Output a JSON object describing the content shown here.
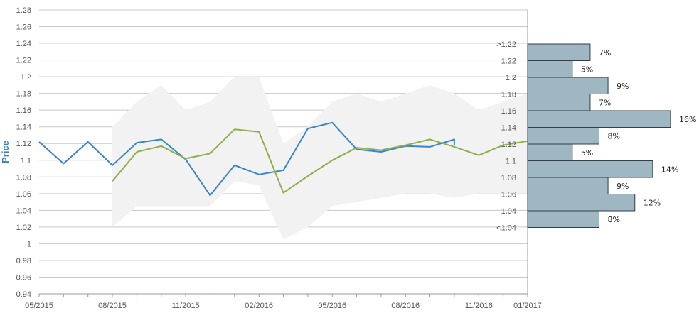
{
  "chart_data": {
    "type": "line",
    "ylabel": "Price",
    "ylim": [
      0.94,
      1.28
    ],
    "y_ticks": [
      "1.28",
      "1.26",
      "1.24",
      "1.22",
      "1.2",
      "1.18",
      "1.16",
      "1.14",
      "1.12",
      "1.1",
      "1.08",
      "1.06",
      "1.04",
      "1.02",
      "1",
      "0.98",
      "0.96",
      "0.94"
    ],
    "x_ticks": [
      "05/2015",
      "08/2015",
      "11/2015",
      "02/2016",
      "05/2016",
      "08/2016",
      "11/2016",
      "01/2017"
    ],
    "grid": true,
    "series": [
      {
        "color": "#3a84cc",
        "x": [
          "05/2015",
          "06/2015",
          "07/2015",
          "08/2015",
          "09/2015",
          "10/2015",
          "11/2015",
          "12/2015",
          "01/2016",
          "02/2016",
          "03/2016",
          "04/2016",
          "05/2016",
          "06/2016",
          "07/2016",
          "08/2016",
          "09/2016",
          "10/2016",
          "10/2016"
        ],
        "values": [
          1.122,
          1.096,
          1.122,
          1.094,
          1.121,
          1.125,
          1.101,
          1.058,
          1.094,
          1.083,
          1.088,
          1.138,
          1.145,
          1.113,
          1.11,
          1.117,
          1.116,
          1.125,
          1.118
        ]
      },
      {
        "color": "#8db04a",
        "x": [
          "08/2015",
          "09/2015",
          "10/2015",
          "11/2015",
          "12/2015",
          "01/2016",
          "02/2016",
          "03/2016",
          "04/2016",
          "05/2016",
          "06/2016",
          "07/2016",
          "08/2016",
          "09/2016",
          "10/2016",
          "11/2016",
          "12/2016",
          "01/2017"
        ],
        "values": [
          1.075,
          1.11,
          1.117,
          1.102,
          1.108,
          1.137,
          1.134,
          1.061,
          1.081,
          1.1,
          1.115,
          1.112,
          1.118,
          1.125,
          1.116,
          1.106,
          1.118,
          1.123
        ]
      }
    ],
    "range_band": {
      "color": "#f2f2f2",
      "x": [
        "08/2015",
        "09/2015",
        "10/2015",
        "11/2015",
        "12/2015",
        "01/2016",
        "02/2016",
        "03/2016",
        "04/2016",
        "05/2016",
        "06/2016",
        "07/2016",
        "08/2016",
        "09/2016",
        "10/2016",
        "11/2016",
        "12/2016",
        "01/2017"
      ],
      "upper": [
        1.14,
        1.17,
        1.19,
        1.16,
        1.17,
        1.2,
        1.2,
        1.12,
        1.14,
        1.17,
        1.18,
        1.17,
        1.18,
        1.19,
        1.18,
        1.16,
        1.17,
        1.18
      ],
      "lower": [
        1.02,
        1.045,
        1.045,
        1.045,
        1.045,
        1.075,
        1.07,
        1.005,
        1.02,
        1.045,
        1.05,
        1.055,
        1.06,
        1.06,
        1.055,
        1.06,
        1.06,
        1.06
      ]
    },
    "distribution": {
      "color": "#9fb6c3",
      "bins": [
        ">1.22",
        "1.22",
        "1.2",
        "1.18",
        "1.16",
        "1.14",
        "1.12",
        "1.1",
        "1.08",
        "1.06",
        "1.04",
        "<1.04"
      ],
      "values": [
        7,
        5,
        9,
        7,
        16,
        8,
        5,
        14,
        9,
        12,
        8
      ],
      "labels": [
        "7%",
        "5%",
        "9%",
        "7%",
        "16%",
        "8%",
        "5%",
        "14%",
        "9%",
        "12%",
        "8%"
      ]
    }
  }
}
